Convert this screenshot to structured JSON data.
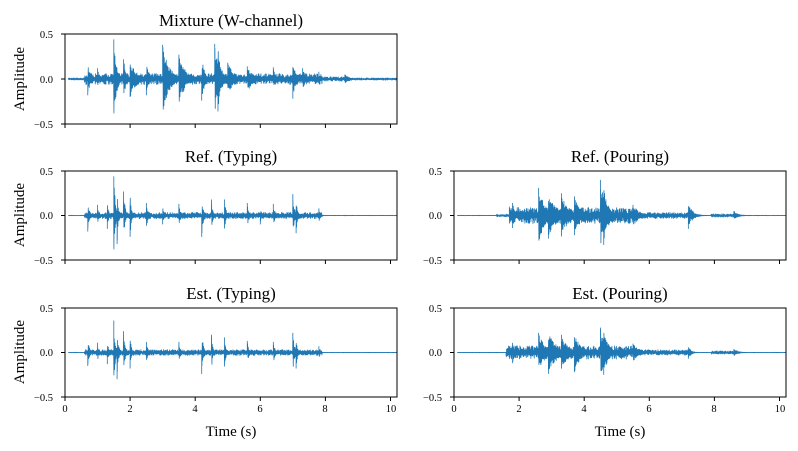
{
  "figure": {
    "wave_color": "#1f77b4",
    "xlabel": "Time (s)",
    "ylabel": "Amplitude"
  },
  "chart_data": [
    {
      "id": "mixture",
      "type": "line",
      "title": "Mixture (W-channel)",
      "xlabel": "",
      "ylabel": "Amplitude",
      "xlim": [
        0,
        10.2
      ],
      "ylim": [
        -0.5,
        0.5
      ],
      "x_ticks": [],
      "y_ticks": [
        -0.5,
        0.0,
        0.5
      ],
      "y_tick_labels": [
        "−0.5",
        "0.0",
        "0.5"
      ],
      "signal_extent_s": [
        0.1,
        10.2
      ],
      "bursts": [
        {
          "t": 0.7,
          "amp": 0.18,
          "dur": 0.09,
          "sign": -1
        },
        {
          "t": 1.0,
          "amp": 0.12,
          "dur": 0.05,
          "sign": 1
        },
        {
          "t": 1.5,
          "amp": 0.44,
          "dur": 0.09,
          "sign": 1
        },
        {
          "t": 1.8,
          "amp": 0.22,
          "dur": 0.09,
          "sign": 1
        },
        {
          "t": 2.0,
          "amp": 0.2,
          "dur": 0.2,
          "sign": -1
        },
        {
          "t": 2.5,
          "amp": 0.18,
          "dur": 0.09,
          "sign": -1
        },
        {
          "t": 3.0,
          "amp": 0.38,
          "dur": 0.2,
          "sign": 1
        },
        {
          "t": 3.5,
          "amp": 0.27,
          "dur": 0.2,
          "sign": 1
        },
        {
          "t": 4.2,
          "amp": 0.24,
          "dur": 0.09,
          "sign": -1
        },
        {
          "t": 4.6,
          "amp": 0.39,
          "dur": 0.16,
          "sign": 1
        },
        {
          "t": 4.7,
          "amp": 0.36,
          "dur": 0.09,
          "sign": -1
        },
        {
          "t": 5.0,
          "amp": 0.18,
          "dur": 0.2,
          "sign": 1
        },
        {
          "t": 5.6,
          "amp": 0.14,
          "dur": 0.2,
          "sign": 1
        },
        {
          "t": 6.4,
          "amp": 0.13,
          "dur": 0.09,
          "sign": 1
        },
        {
          "t": 7.0,
          "amp": 0.22,
          "dur": 0.09,
          "sign": -1
        },
        {
          "t": 7.3,
          "amp": 0.12,
          "dur": 0.09,
          "sign": 1
        },
        {
          "t": 7.8,
          "amp": 0.08,
          "dur": 0.05,
          "sign": 1
        },
        {
          "t": 8.6,
          "amp": 0.05,
          "dur": 0.12,
          "sign": 1
        }
      ],
      "noise": {
        "base": 0.012,
        "segments": [
          [
            0.6,
            7.9,
            0.06
          ],
          [
            7.9,
            8.8,
            0.025
          ]
        ]
      }
    },
    {
      "id": "ref-typing",
      "type": "line",
      "title": "Ref. (Typing)",
      "xlabel": "",
      "ylabel": "Amplitude",
      "xlim": [
        0,
        10.2
      ],
      "ylim": [
        -0.5,
        0.5
      ],
      "x_ticks": [],
      "y_ticks": [
        -0.5,
        0.0,
        0.5
      ],
      "y_tick_labels": [
        "−0.5",
        "0.0",
        "0.5"
      ],
      "signal_extent_s": [
        0.1,
        10.2
      ],
      "bursts": [
        {
          "t": 0.7,
          "amp": 0.18,
          "dur": 0.05,
          "sign": -1
        },
        {
          "t": 1.0,
          "amp": 0.12,
          "dur": 0.04,
          "sign": 1
        },
        {
          "t": 1.3,
          "amp": 0.15,
          "dur": 0.04,
          "sign": -1
        },
        {
          "t": 1.5,
          "amp": 0.44,
          "dur": 0.05,
          "sign": 1
        },
        {
          "t": 1.6,
          "amp": 0.32,
          "dur": 0.04,
          "sign": -1
        },
        {
          "t": 1.8,
          "amp": 0.27,
          "dur": 0.05,
          "sign": 1
        },
        {
          "t": 2.0,
          "amp": 0.24,
          "dur": 0.04,
          "sign": -1
        },
        {
          "t": 2.5,
          "amp": 0.14,
          "dur": 0.05,
          "sign": 1
        },
        {
          "t": 3.0,
          "amp": 0.1,
          "dur": 0.04,
          "sign": -1
        },
        {
          "t": 3.5,
          "amp": 0.13,
          "dur": 0.05,
          "sign": 1
        },
        {
          "t": 4.2,
          "amp": 0.24,
          "dur": 0.05,
          "sign": -1
        },
        {
          "t": 4.5,
          "amp": 0.18,
          "dur": 0.04,
          "sign": 1
        },
        {
          "t": 4.9,
          "amp": 0.18,
          "dur": 0.05,
          "sign": 1
        },
        {
          "t": 5.6,
          "amp": 0.14,
          "dur": 0.05,
          "sign": 1
        },
        {
          "t": 6.0,
          "amp": 0.1,
          "dur": 0.04,
          "sign": -1
        },
        {
          "t": 6.4,
          "amp": 0.13,
          "dur": 0.05,
          "sign": 1
        },
        {
          "t": 7.0,
          "amp": 0.24,
          "dur": 0.05,
          "sign": 1
        },
        {
          "t": 7.1,
          "amp": 0.2,
          "dur": 0.04,
          "sign": -1
        },
        {
          "t": 7.8,
          "amp": 0.08,
          "dur": 0.04,
          "sign": 1
        }
      ],
      "noise": {
        "base": 0.002,
        "segments": [
          [
            0.6,
            7.9,
            0.035
          ]
        ]
      }
    },
    {
      "id": "ref-pouring",
      "type": "line",
      "title": "Ref. (Pouring)",
      "xlabel": "",
      "ylabel": "",
      "xlim": [
        0,
        10.2
      ],
      "ylim": [
        -0.5,
        0.5
      ],
      "x_ticks": [],
      "y_ticks": [
        -0.5,
        0.0,
        0.5
      ],
      "y_tick_labels": [
        "−0.5",
        "0.0",
        "0.5"
      ],
      "signal_extent_s": [
        0.1,
        10.2
      ],
      "bursts": [
        {
          "t": 1.7,
          "amp": 0.1,
          "dur": 0.15,
          "sign": 1
        },
        {
          "t": 1.8,
          "amp": 0.14,
          "dur": 0.08,
          "sign": -1
        },
        {
          "t": 2.6,
          "amp": 0.31,
          "dur": 0.2,
          "sign": 1
        },
        {
          "t": 2.9,
          "amp": 0.26,
          "dur": 0.25,
          "sign": -1
        },
        {
          "t": 3.3,
          "amp": 0.25,
          "dur": 0.2,
          "sign": 1
        },
        {
          "t": 3.7,
          "amp": 0.22,
          "dur": 0.2,
          "sign": -1
        },
        {
          "t": 4.5,
          "amp": 0.4,
          "dur": 0.15,
          "sign": 1
        },
        {
          "t": 4.6,
          "amp": 0.33,
          "dur": 0.15,
          "sign": -1
        },
        {
          "t": 5.5,
          "amp": 0.12,
          "dur": 0.2,
          "sign": 1
        },
        {
          "t": 7.2,
          "amp": 0.15,
          "dur": 0.08,
          "sign": -1
        },
        {
          "t": 7.3,
          "amp": 0.07,
          "dur": 0.12,
          "sign": 1
        },
        {
          "t": 8.6,
          "amp": 0.05,
          "dur": 0.12,
          "sign": 1
        }
      ],
      "noise": {
        "base": 0.002,
        "segments": [
          [
            1.3,
            1.7,
            0.015
          ],
          [
            1.7,
            5.5,
            0.09
          ],
          [
            5.5,
            7.3,
            0.035
          ],
          [
            7.9,
            8.7,
            0.02
          ]
        ]
      }
    },
    {
      "id": "est-typing",
      "type": "line",
      "title": "Est. (Typing)",
      "xlabel": "Time (s)",
      "ylabel": "Amplitude",
      "xlim": [
        0,
        10.2
      ],
      "ylim": [
        -0.5,
        0.5
      ],
      "x_ticks": [
        0,
        2,
        4,
        6,
        8,
        10
      ],
      "x_tick_labels": [
        "0",
        "2",
        "4",
        "6",
        "8",
        "10"
      ],
      "y_ticks": [
        -0.5,
        0.0,
        0.5
      ],
      "y_tick_labels": [
        "−0.5",
        "0.0",
        "0.5"
      ],
      "signal_extent_s": [
        0.1,
        10.2
      ],
      "bursts": [
        {
          "t": 0.7,
          "amp": 0.15,
          "dur": 0.05,
          "sign": -1
        },
        {
          "t": 1.0,
          "amp": 0.11,
          "dur": 0.04,
          "sign": 1
        },
        {
          "t": 1.3,
          "amp": 0.13,
          "dur": 0.04,
          "sign": -1
        },
        {
          "t": 1.5,
          "amp": 0.36,
          "dur": 0.05,
          "sign": 1
        },
        {
          "t": 1.6,
          "amp": 0.3,
          "dur": 0.04,
          "sign": -1
        },
        {
          "t": 1.8,
          "amp": 0.24,
          "dur": 0.05,
          "sign": 1
        },
        {
          "t": 2.0,
          "amp": 0.18,
          "dur": 0.04,
          "sign": -1
        },
        {
          "t": 2.5,
          "amp": 0.12,
          "dur": 0.05,
          "sign": 1
        },
        {
          "t": 3.5,
          "amp": 0.12,
          "dur": 0.05,
          "sign": 1
        },
        {
          "t": 4.2,
          "amp": 0.24,
          "dur": 0.05,
          "sign": -1
        },
        {
          "t": 4.5,
          "amp": 0.2,
          "dur": 0.04,
          "sign": 1
        },
        {
          "t": 4.9,
          "amp": 0.17,
          "dur": 0.05,
          "sign": 1
        },
        {
          "t": 5.6,
          "amp": 0.13,
          "dur": 0.05,
          "sign": 1
        },
        {
          "t": 6.4,
          "amp": 0.12,
          "dur": 0.05,
          "sign": 1
        },
        {
          "t": 7.0,
          "amp": 0.22,
          "dur": 0.05,
          "sign": 1
        },
        {
          "t": 7.1,
          "amp": 0.18,
          "dur": 0.04,
          "sign": -1
        },
        {
          "t": 7.8,
          "amp": 0.07,
          "dur": 0.04,
          "sign": 1
        }
      ],
      "noise": {
        "base": 0.002,
        "segments": [
          [
            0.6,
            7.9,
            0.032
          ]
        ]
      }
    },
    {
      "id": "est-pouring",
      "type": "line",
      "title": "Est. (Pouring)",
      "xlabel": "Time (s)",
      "ylabel": "",
      "xlim": [
        0,
        10.2
      ],
      "ylim": [
        -0.5,
        0.5
      ],
      "x_ticks": [
        0,
        2,
        4,
        6,
        8,
        10
      ],
      "x_tick_labels": [
        "0",
        "2",
        "4",
        "6",
        "8",
        "10"
      ],
      "y_ticks": [
        -0.5,
        0.0,
        0.5
      ],
      "y_tick_labels": [
        "−0.5",
        "0.0",
        "0.5"
      ],
      "signal_extent_s": [
        0.1,
        10.2
      ],
      "bursts": [
        {
          "t": 1.8,
          "amp": 0.12,
          "dur": 0.08,
          "sign": -1
        },
        {
          "t": 2.6,
          "amp": 0.22,
          "dur": 0.2,
          "sign": 1
        },
        {
          "t": 2.9,
          "amp": 0.24,
          "dur": 0.25,
          "sign": -1
        },
        {
          "t": 3.3,
          "amp": 0.2,
          "dur": 0.2,
          "sign": 1
        },
        {
          "t": 3.7,
          "amp": 0.22,
          "dur": 0.2,
          "sign": -1
        },
        {
          "t": 4.5,
          "amp": 0.28,
          "dur": 0.15,
          "sign": 1
        },
        {
          "t": 4.6,
          "amp": 0.25,
          "dur": 0.15,
          "sign": -1
        },
        {
          "t": 5.5,
          "amp": 0.1,
          "dur": 0.2,
          "sign": 1
        },
        {
          "t": 7.2,
          "amp": 0.07,
          "dur": 0.08,
          "sign": -1
        },
        {
          "t": 8.6,
          "amp": 0.04,
          "dur": 0.12,
          "sign": 1
        }
      ],
      "noise": {
        "base": 0.002,
        "segments": [
          [
            1.6,
            5.5,
            0.075
          ],
          [
            5.5,
            7.3,
            0.03
          ],
          [
            7.9,
            8.7,
            0.018
          ]
        ]
      }
    }
  ]
}
